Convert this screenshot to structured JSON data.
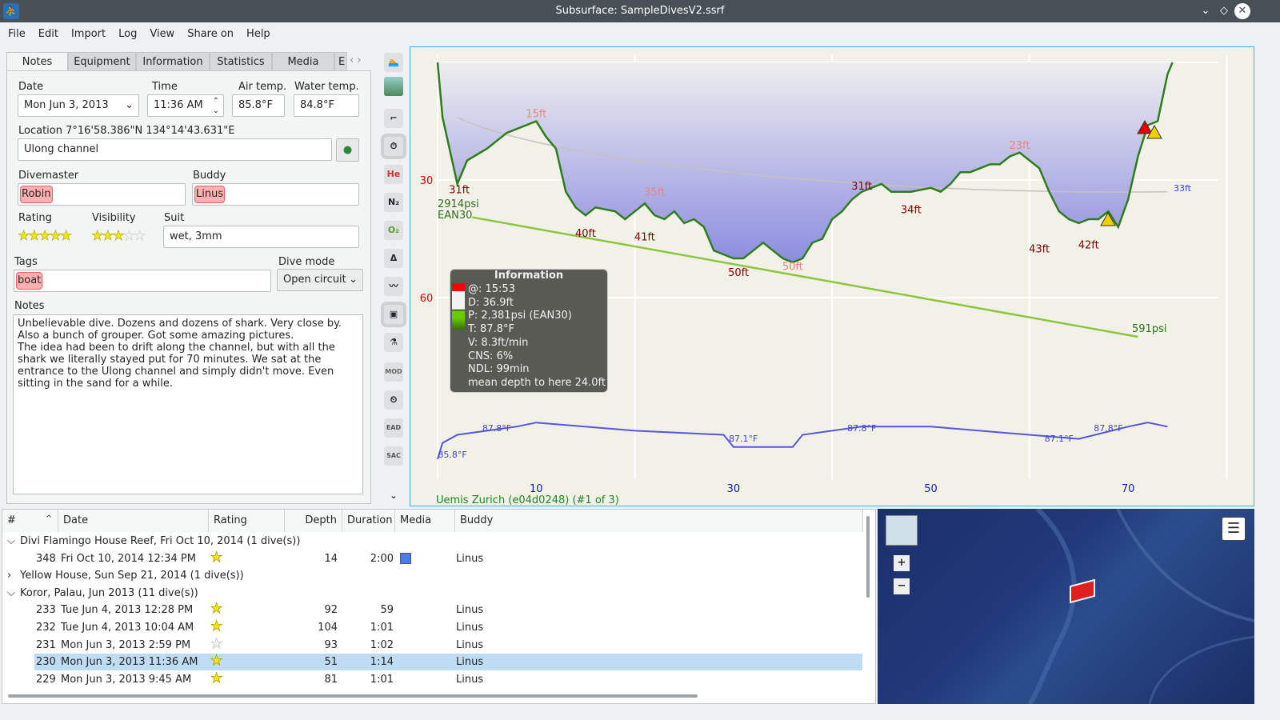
{
  "window": {
    "title": "Subsurface: SampleDivesV2.ssrf"
  },
  "menu": [
    "File",
    "Edit",
    "Import",
    "Log",
    "View",
    "Share on",
    "Help"
  ],
  "tabs": [
    "Notes",
    "Equipment",
    "Information",
    "Statistics",
    "Media",
    "E"
  ],
  "notes": {
    "date_label": "Date",
    "date": "Mon Jun 3, 2013",
    "time_label": "Time",
    "time": "11:36 AM",
    "air_label": "Air temp.",
    "air": "85.8°F",
    "water_label": "Water temp.",
    "water": "84.8°F",
    "location_label": "Location 7°16'58.386\"N 134°14'43.631\"E",
    "location": "Ulong channel",
    "divemaster_label": "Divemaster",
    "divemaster": "Robin",
    "buddy_label": "Buddy",
    "buddy": "Linus",
    "rating_label": "Rating",
    "rating": 5,
    "visibility_label": "Visibility",
    "visibility": 3,
    "suit_label": "Suit",
    "suit": "wet, 3mm",
    "tags_label": "Tags",
    "tag": "boat",
    "divemode_label": "Dive mode",
    "divemode": "Open circuit",
    "notes_label": "Notes",
    "notes_text": "Unbelievable dive. Dozens and dozens of shark. Very close by. Also a bunch of grouper. Got some amazing pictures.\nThe idea had been to drift along the channel, but with all the shark we literally stayed put for 70 minutes. We sat at the entrance to the Ulong channel and simply didn't move. Even sitting in the sand for a while."
  },
  "toolbar": [
    {
      "icon": "ascent-rate-icon",
      "t": "🏊"
    },
    {
      "icon": "ceiling-icon",
      "t": ""
    },
    {
      "icon": "dive-computer-ceiling-icon",
      "t": "⌐"
    },
    {
      "icon": "deco-stop-icon",
      "t": "⏱"
    },
    {
      "icon": "helium-icon",
      "t": "He"
    },
    {
      "icon": "nitrogen-icon",
      "t": "N₂"
    },
    {
      "icon": "oxygen-icon",
      "t": "O₂"
    },
    {
      "icon": "ruler-icon",
      "t": "Δ"
    },
    {
      "icon": "heartrate-icon",
      "t": "〰"
    },
    {
      "icon": "photos-icon",
      "t": "▣"
    },
    {
      "icon": "tank-bar-icon",
      "t": "⚗"
    },
    {
      "icon": "mod-icon",
      "t": "MOD"
    },
    {
      "icon": "ndl-tts-icon",
      "t": "⏲"
    },
    {
      "icon": "ead-icon",
      "t": "EAD"
    },
    {
      "icon": "sac-icon",
      "t": "SAC"
    },
    {
      "icon": "chevron-down-icon",
      "t": "⌄"
    }
  ],
  "profile": {
    "x_unit": "min",
    "y_unit": "ft",
    "x_ticks": [
      10,
      30,
      50,
      70
    ],
    "y_ticks": [
      30,
      60
    ],
    "depth": [
      [
        0,
        0
      ],
      [
        0.5,
        14
      ],
      [
        2,
        31
      ],
      [
        3,
        25
      ],
      [
        5,
        22
      ],
      [
        7,
        18
      ],
      [
        9,
        16
      ],
      [
        10,
        15
      ],
      [
        11,
        19
      ],
      [
        12,
        22
      ],
      [
        13,
        33
      ],
      [
        14,
        37
      ],
      [
        15,
        39
      ],
      [
        16,
        37
      ],
      [
        18,
        38
      ],
      [
        19,
        40
      ],
      [
        20,
        38
      ],
      [
        21,
        36
      ],
      [
        22,
        39
      ],
      [
        23,
        40
      ],
      [
        24,
        38
      ],
      [
        25,
        41
      ],
      [
        26,
        40
      ],
      [
        27,
        42
      ],
      [
        28,
        48
      ],
      [
        29,
        49
      ],
      [
        30,
        50
      ],
      [
        31,
        50
      ],
      [
        32,
        48
      ],
      [
        33,
        46
      ],
      [
        34,
        48
      ],
      [
        35,
        50
      ],
      [
        36,
        51
      ],
      [
        37,
        50
      ],
      [
        38,
        46
      ],
      [
        39,
        45
      ],
      [
        40,
        40
      ],
      [
        41,
        38
      ],
      [
        42,
        35
      ],
      [
        43,
        33
      ],
      [
        44,
        32
      ],
      [
        45,
        31
      ],
      [
        46,
        33
      ],
      [
        48,
        33
      ],
      [
        50,
        32
      ],
      [
        51,
        33
      ],
      [
        52,
        31
      ],
      [
        53,
        28
      ],
      [
        54,
        28
      ],
      [
        55,
        27
      ],
      [
        56,
        26
      ],
      [
        57,
        26
      ],
      [
        58,
        24
      ],
      [
        59,
        23
      ],
      [
        60,
        25
      ],
      [
        61,
        27
      ],
      [
        62,
        33
      ],
      [
        63,
        38
      ],
      [
        64,
        40
      ],
      [
        65,
        41
      ],
      [
        66,
        40
      ],
      [
        67,
        40
      ],
      [
        68,
        38
      ],
      [
        69,
        42
      ],
      [
        70,
        35
      ],
      [
        71,
        24
      ],
      [
        72,
        16
      ],
      [
        73,
        15
      ],
      [
        74,
        3
      ],
      [
        74.5,
        0
      ]
    ],
    "depth_labels": [
      {
        "t": 2.2,
        "d": 33,
        "text": "31ft"
      },
      {
        "t": 10,
        "d": 14,
        "text": "15ft"
      },
      {
        "t": 15,
        "d": 42,
        "text": "40ft"
      },
      {
        "t": 21,
        "d": 43,
        "text": "41ft"
      },
      {
        "t": 22,
        "d": 34,
        "text": "35ft"
      },
      {
        "t": 30.5,
        "d": 52,
        "text": "50ft"
      },
      {
        "t": 36,
        "d": 53,
        "text": "50ft"
      },
      {
        "t": 43,
        "d": 30,
        "text": "31ft"
      },
      {
        "t": 48,
        "d": 36,
        "text": "34ft"
      },
      {
        "t": 59,
        "d": 22,
        "text": "23ft"
      },
      {
        "t": 61,
        "d": 46,
        "text": "43ft"
      },
      {
        "t": 66,
        "d": 45,
        "text": "42ft"
      }
    ],
    "pressure_start": "2914psi",
    "gas": "EAN30",
    "pressure_end": "591psi",
    "mean_depth_label": "33ft",
    "temp_labels": [
      {
        "t": 6,
        "text": "87.8°F"
      },
      {
        "t": 31,
        "text": "87.1°F"
      },
      {
        "t": 43,
        "text": "87.8°F"
      },
      {
        "t": 63,
        "text": "87.1°F"
      },
      {
        "t": 68,
        "text": "87.8°F"
      },
      {
        "t": 1.5,
        "text": "85.8°F"
      }
    ],
    "computer": "Uemis Zurich (e04d0248) (#1 of 3)",
    "info": {
      "title": "Information",
      "lines": [
        "@: 15:53",
        "D: 36.9ft",
        "P: 2,381psi (EAN30)",
        "T: 87.8°F",
        "V: 8.3ft/min",
        "CNS: 6%",
        "NDL: 99min",
        "mean depth to here 24.0ft"
      ]
    },
    "colors": {
      "depth": "#2e7d1a",
      "fill": "#9a9ae8",
      "pressure": "#8cc63f",
      "temp": "#5555dd",
      "axis_depth": "#e00000",
      "axis_time": "#1020c0"
    }
  },
  "list": {
    "headers": [
      "#",
      "Date",
      "Rating",
      "Depth",
      "Duration",
      "Media",
      "Buddy"
    ],
    "rows": [
      {
        "group": true,
        "open": true,
        "text": "Divi Flamingo House Reef, Fri Oct 10, 2014 (1 dive(s))"
      },
      {
        "num": "348",
        "date": "Fri Oct 10, 2014 12:34 PM",
        "rating": 5,
        "depth": "14",
        "dur": "2:00",
        "media": true,
        "buddy": "Linus"
      },
      {
        "group": true,
        "open": false,
        "text": "Yellow House, Sun Sep 21, 2014 (1 dive(s))"
      },
      {
        "group": true,
        "open": true,
        "text": "Koror, Palau, Jun 2013 (11 dive(s))"
      },
      {
        "num": "233",
        "date": "Tue Jun 4, 2013 12:28 PM",
        "rating": 5,
        "depth": "92",
        "dur": "59",
        "buddy": "Linus"
      },
      {
        "num": "232",
        "date": "Tue Jun 4, 2013 10:04 AM",
        "rating": 5,
        "depth": "104",
        "dur": "1:01",
        "buddy": "Linus"
      },
      {
        "num": "231",
        "date": "Mon Jun 3, 2013 2:59 PM",
        "rating": 3,
        "depth": "93",
        "dur": "1:02",
        "buddy": "Linus"
      },
      {
        "num": "230",
        "date": "Mon Jun 3, 2013 11:36 AM",
        "rating": 5,
        "depth": "51",
        "dur": "1:14",
        "buddy": "Linus",
        "selected": true
      },
      {
        "num": "229",
        "date": "Mon Jun 3, 2013 9:45 AM",
        "rating": 5,
        "depth": "81",
        "dur": "1:01",
        "buddy": "Linus"
      }
    ]
  },
  "map": {
    "zoom_in": "+",
    "zoom_out": "−",
    "menu_icon": "hamburger-icon"
  }
}
